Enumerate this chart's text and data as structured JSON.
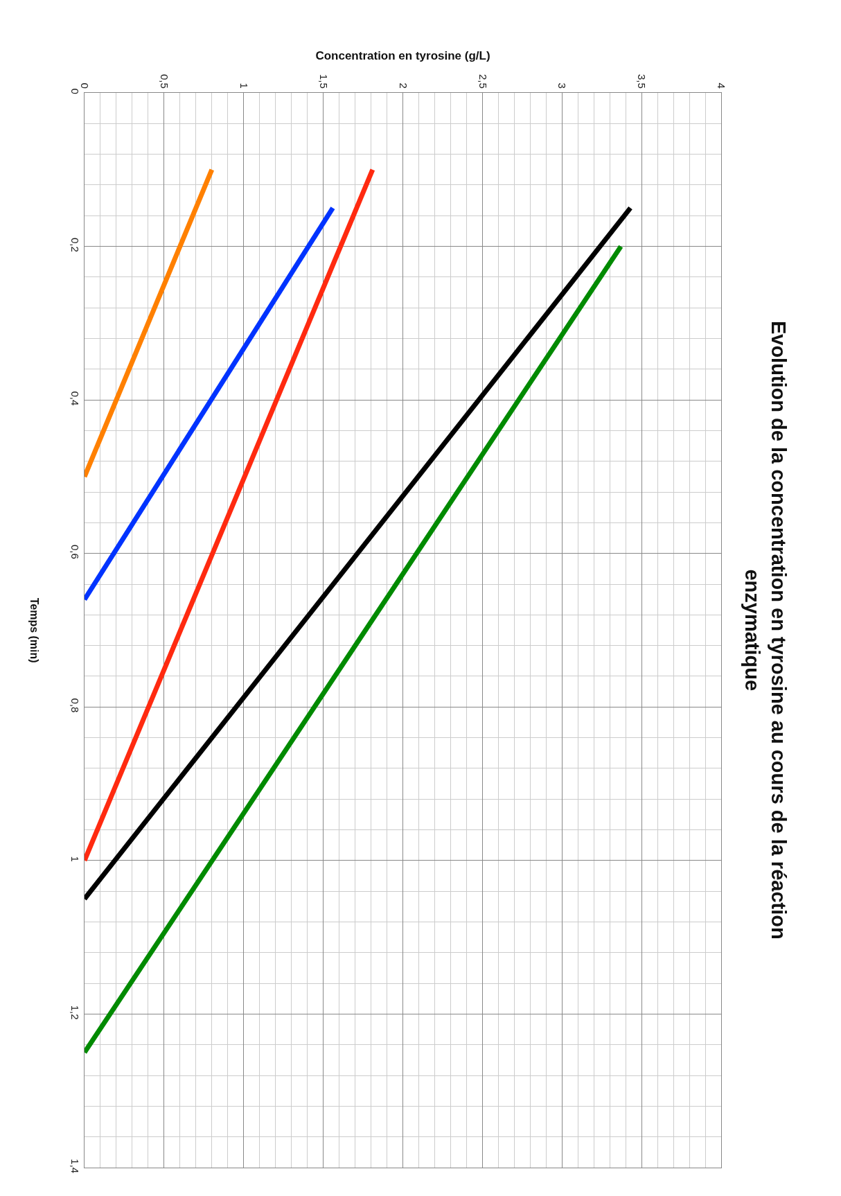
{
  "chart_data": {
    "type": "line",
    "title": "Evolution de la concentration en tyrosine au cours de la réaction enzymatique",
    "xlabel": "Concentration en tyrosine (g/L)",
    "ylabel": "Temps (min)",
    "xlim": [
      0,
      4
    ],
    "ylim": [
      1.4,
      0
    ],
    "xticks": [
      0,
      {
        "value": 0.5,
        "label": "0,5"
      },
      1,
      {
        "value": 1.5,
        "label": "1,5"
      },
      2,
      {
        "value": 2.5,
        "label": "2,5"
      },
      3,
      {
        "value": 3.5,
        "label": "3,5"
      },
      4
    ],
    "yticks": [
      0,
      {
        "value": 0.2,
        "label": "0,2"
      },
      {
        "value": 0.4,
        "label": "0,4"
      },
      {
        "value": 0.6,
        "label": "0,6"
      },
      {
        "value": 0.8,
        "label": "0,8"
      },
      1,
      {
        "value": 1.2,
        "label": "1,2"
      },
      {
        "value": 1.4,
        "label": "1,4"
      }
    ],
    "grid": true,
    "marker": "none",
    "line_style": "solid",
    "series": [
      {
        "color": "#ff8000",
        "x": [
          0.8,
          0
        ],
        "values": [
          0.1,
          0.5
        ]
      },
      {
        "color": "#0033ff",
        "x": [
          1.56,
          0
        ],
        "values": [
          0.15,
          0.66
        ]
      },
      {
        "color": "#ff2a10",
        "x": [
          1.81,
          0
        ],
        "values": [
          0.1,
          1.0
        ]
      },
      {
        "color": "#000000",
        "x": [
          3.43,
          0
        ],
        "values": [
          0.15,
          1.05
        ]
      },
      {
        "color": "#008a00",
        "x": [
          3.37,
          0
        ],
        "values": [
          0.2,
          1.25
        ]
      }
    ]
  }
}
